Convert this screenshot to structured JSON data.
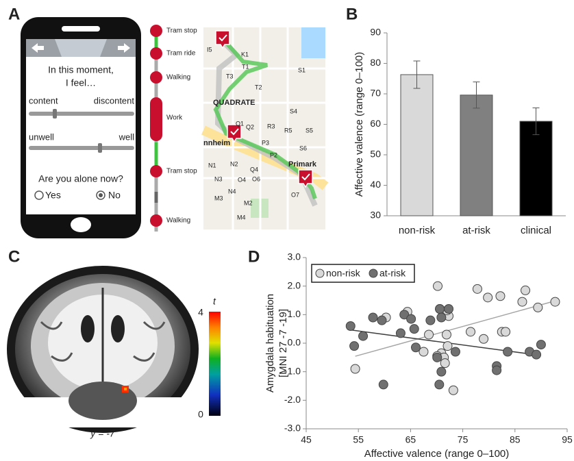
{
  "panel_labels": [
    "A",
    "B",
    "C",
    "D"
  ],
  "phone": {
    "prompt": [
      "In this moment,",
      "I feel…"
    ],
    "sliders": [
      {
        "left": "content",
        "right": "discontent"
      },
      {
        "left": "unwell",
        "right": "well"
      }
    ],
    "question": "Are you alone now?",
    "options": [
      "Yes",
      "No"
    ]
  },
  "timeline": [
    "Tram stop",
    "Tram ride",
    "Walking",
    "Work",
    "Tram stop",
    "Walking"
  ],
  "map_labels": [
    "I5",
    "K1",
    "T1",
    "T2",
    "T3",
    "QUADRATE",
    "Q1",
    "Q2",
    "R3",
    "R5",
    "S1",
    "S4",
    "S5",
    "S6",
    "P3",
    "nnheim",
    "N1",
    "N2",
    "N3",
    "Q4",
    "O4",
    "O6",
    "O7",
    "M3",
    "M2",
    "Primark",
    "N4",
    "M4",
    "P2"
  ],
  "brain": {
    "caption": "y = -7",
    "colorbar": {
      "label": "t",
      "max": 4,
      "min": 0
    }
  },
  "chart_data": [
    {
      "type": "bar",
      "categories": [
        "non-risk",
        "at-risk",
        "clinical"
      ],
      "values": [
        76.3,
        69.6,
        61.0
      ],
      "errors": [
        4.5,
        4.3,
        4.4
      ],
      "colors": [
        "#d9d9d9",
        "#808080",
        "#000000"
      ],
      "ylabel": "Affective valence (range 0–100)",
      "ylim": [
        30,
        90
      ],
      "yticks": [
        30,
        40,
        50,
        60,
        70,
        80,
        90
      ],
      "grid": false
    },
    {
      "type": "scatter",
      "xlabel": "Affective valence (range 0–100)",
      "ylabel": [
        "Amygdala habituation",
        "[MNI 27 -7 -19]"
      ],
      "xlim": [
        45,
        95
      ],
      "xticks": [
        45,
        55,
        65,
        75,
        85,
        95
      ],
      "ylim": [
        -3,
        3
      ],
      "yticks": [
        {
          "value": -3,
          "label": "-3.0"
        },
        {
          "value": -2,
          "label": "-2.0"
        },
        {
          "value": -1,
          "label": "-1.0"
        },
        {
          "value": 0,
          "label": "0.0"
        },
        {
          "value": 1,
          "label": "1.0"
        },
        {
          "value": 2,
          "label": "2.0"
        },
        {
          "value": 3,
          "label": "3.0"
        }
      ],
      "legend": "upper left",
      "trendline": true,
      "grid": false,
      "series": [
        {
          "name": "non-risk",
          "color": "#d9d9d9",
          "line_color": "#a6a6a6",
          "x": [
            54.4,
            70.2,
            77.8,
            79.8,
            82.2,
            87.0,
            86.4,
            92.7,
            89.4,
            72.3,
            72.0,
            70.6,
            64.4,
            60.3,
            82.5,
            83.2,
            76.5,
            79.0,
            68.5,
            72.1,
            70.9,
            67.5,
            70.1,
            71.4,
            71.6,
            73.2,
            71.9
          ],
          "values": [
            -0.9,
            2.0,
            1.9,
            1.6,
            1.65,
            1.85,
            1.45,
            1.45,
            1.25,
            0.95,
            1.15,
            1.2,
            1.1,
            0.9,
            0.4,
            0.4,
            0.4,
            0.15,
            0.3,
            -0.1,
            -0.35,
            -0.3,
            -0.45,
            -0.5,
            -0.7,
            -1.65,
            0.3
          ]
        },
        {
          "name": "at-risk",
          "color": "#707070",
          "line_color": "#404040",
          "x": [
            53.5,
            54.2,
            55.9,
            57.8,
            59.5,
            63.8,
            65.1,
            68.8,
            70.6,
            72.3,
            70.9,
            63.1,
            65.7,
            66.0,
            70.1,
            73.6,
            70.9,
            70.5,
            59.8,
            81.5,
            81.5,
            83.6,
            87.8,
            89.1,
            90.0
          ],
          "values": [
            0.6,
            -0.1,
            0.25,
            0.9,
            0.8,
            1.0,
            0.85,
            0.8,
            1.2,
            1.2,
            0.9,
            0.35,
            0.5,
            -0.15,
            -0.5,
            -0.3,
            -1.0,
            -1.45,
            -1.45,
            -0.8,
            -0.95,
            -0.3,
            -0.3,
            -0.4,
            -0.05
          ]
        }
      ]
    }
  ]
}
